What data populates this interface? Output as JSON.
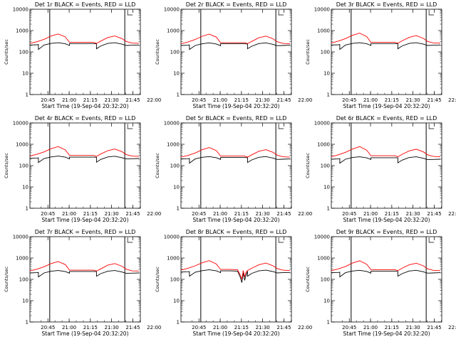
{
  "title_template": "Det {d}  BLACK = Events, RED = LLD",
  "xlabel": "Start Time (19-Sep-04 20:32:20)",
  "ylabel": "Counts/sec",
  "y_ticks": [
    {
      "v": 1,
      "label": "1"
    },
    {
      "v": 10,
      "label": "10"
    },
    {
      "v": 100,
      "label": "100"
    },
    {
      "v": 1000,
      "label": "1000"
    },
    {
      "v": 10000,
      "label": "10000"
    }
  ],
  "x_tick_labels": [
    "20:45",
    "21:00",
    "21:15",
    "21:30",
    "21:45",
    "22:00"
  ],
  "colors": {
    "events": "#000000",
    "lld": "#ff0000",
    "axes": "#000000"
  },
  "chart_data": [
    {
      "type": "line",
      "detector": "1r",
      "title": "Det 1r  BLACK = Events, RED = LLD",
      "xlabel": "Start Time (19-Sep-04 20:32:20)",
      "ylabel": "Counts/sec",
      "y_scale": "log",
      "ylim": [
        1,
        10000
      ],
      "x_range_min": [
        0,
        78
      ],
      "x_ticks_min": [
        12.7,
        27.7,
        42.7,
        57.7,
        72.7,
        87.7
      ],
      "vlines_min": [
        14,
        67
      ],
      "series": [
        {
          "name": "Events",
          "color": "#000000",
          "x": [
            0,
            5,
            6,
            6,
            10,
            15,
            20,
            25,
            28,
            28,
            35,
            45,
            47,
            47,
            50,
            55,
            60,
            65,
            68,
            72,
            77
          ],
          "y": [
            210,
            215,
            220,
            130,
            210,
            250,
            270,
            240,
            200,
            245,
            245,
            245,
            240,
            140,
            190,
            250,
            270,
            230,
            200,
            205,
            210
          ]
        },
        {
          "name": "LLD",
          "color": "#ff0000",
          "x": [
            0,
            5,
            10,
            15,
            20,
            25,
            28,
            35,
            45,
            47,
            50,
            55,
            60,
            65,
            68,
            72,
            77
          ],
          "y": [
            250,
            300,
            390,
            560,
            690,
            500,
            280,
            280,
            280,
            250,
            320,
            470,
            560,
            420,
            310,
            260,
            250
          ]
        }
      ]
    },
    {
      "type": "line",
      "detector": "2r",
      "title": "Det 2r  BLACK = Events, RED = LLD",
      "xlabel": "Start Time (19-Sep-04 20:32:20)",
      "ylabel": "Counts/sec",
      "y_scale": "log",
      "ylim": [
        1,
        10000
      ],
      "x_range_min": [
        0,
        78
      ],
      "x_ticks_min": [
        12.7,
        27.7,
        42.7,
        57.7,
        72.7,
        87.7
      ],
      "vlines_min": [
        14,
        67
      ],
      "series": [
        {
          "name": "Events",
          "color": "#000000",
          "x": [
            0,
            5,
            6,
            6,
            10,
            15,
            20,
            25,
            28,
            28,
            35,
            45,
            47,
            47,
            50,
            55,
            60,
            65,
            68,
            72,
            77
          ],
          "y": [
            200,
            205,
            210,
            130,
            200,
            240,
            265,
            235,
            195,
            240,
            240,
            240,
            235,
            140,
            185,
            245,
            265,
            225,
            195,
            200,
            205
          ]
        },
        {
          "name": "LLD",
          "color": "#ff0000",
          "x": [
            0,
            5,
            10,
            15,
            20,
            25,
            28,
            35,
            45,
            47,
            50,
            55,
            60,
            65,
            68,
            72,
            77
          ],
          "y": [
            240,
            290,
            380,
            540,
            680,
            490,
            270,
            270,
            270,
            245,
            310,
            460,
            550,
            410,
            300,
            250,
            240
          ]
        }
      ]
    },
    {
      "type": "line",
      "detector": "3r",
      "title": "Det 3r  BLACK = Events, RED = LLD",
      "xlabel": "Start Time (19-Sep-04 20:32:20)",
      "ylabel": "Counts/sec",
      "y_scale": "log",
      "ylim": [
        1,
        10000
      ],
      "x_range_min": [
        0,
        78
      ],
      "x_ticks_min": [
        12.7,
        27.7,
        42.7,
        57.7,
        72.7,
        87.7
      ],
      "vlines_min": [
        14,
        67
      ],
      "series": [
        {
          "name": "Events",
          "color": "#000000",
          "x": [
            0,
            5,
            6,
            6,
            10,
            15,
            20,
            25,
            28,
            28,
            35,
            45,
            47,
            47,
            50,
            55,
            60,
            65,
            68,
            72,
            77
          ],
          "y": [
            210,
            215,
            220,
            130,
            210,
            250,
            270,
            240,
            200,
            245,
            245,
            245,
            240,
            140,
            190,
            250,
            270,
            230,
            200,
            205,
            210
          ]
        },
        {
          "name": "LLD",
          "color": "#ff0000",
          "x": [
            0,
            5,
            10,
            15,
            20,
            25,
            28,
            35,
            45,
            47,
            50,
            55,
            60,
            65,
            68,
            72,
            77
          ],
          "y": [
            260,
            320,
            420,
            600,
            760,
            520,
            280,
            280,
            280,
            255,
            330,
            480,
            580,
            430,
            310,
            265,
            255
          ]
        }
      ]
    },
    {
      "type": "line",
      "detector": "4r",
      "title": "Det 4r  BLACK = Events, RED = LLD",
      "xlabel": "Start Time (19-Sep-04 20:32:20)",
      "ylabel": "Counts/sec",
      "y_scale": "log",
      "ylim": [
        1,
        10000
      ],
      "x_range_min": [
        0,
        78
      ],
      "x_ticks_min": [
        12.7,
        27.7,
        42.7,
        57.7,
        72.7,
        87.7
      ],
      "vlines_min": [
        14,
        67
      ],
      "series": [
        {
          "name": "Events",
          "color": "#000000",
          "x": [
            0,
            5,
            6,
            6,
            10,
            15,
            20,
            25,
            28,
            28,
            35,
            45,
            47,
            47,
            50,
            55,
            60,
            65,
            68,
            72,
            77
          ],
          "y": [
            220,
            225,
            230,
            140,
            215,
            255,
            280,
            250,
            205,
            250,
            250,
            250,
            245,
            145,
            195,
            255,
            275,
            235,
            205,
            210,
            215
          ]
        },
        {
          "name": "LLD",
          "color": "#ff0000",
          "x": [
            0,
            5,
            10,
            15,
            20,
            25,
            28,
            35,
            45,
            47,
            50,
            55,
            60,
            65,
            68,
            72,
            77
          ],
          "y": [
            280,
            340,
            440,
            620,
            780,
            540,
            300,
            300,
            300,
            270,
            350,
            500,
            600,
            450,
            330,
            280,
            270
          ]
        }
      ]
    },
    {
      "type": "line",
      "detector": "5r",
      "title": "Det 5r  BLACK = Events, RED = LLD",
      "xlabel": "Start Time (19-Sep-04 20:32:20)",
      "ylabel": "Counts/sec",
      "y_scale": "log",
      "ylim": [
        1,
        10000
      ],
      "x_range_min": [
        0,
        78
      ],
      "x_ticks_min": [
        12.7,
        27.7,
        42.7,
        57.7,
        72.7,
        87.7
      ],
      "vlines_min": [
        14,
        67
      ],
      "series": [
        {
          "name": "Events",
          "color": "#000000",
          "x": [
            0,
            5,
            6,
            6,
            10,
            15,
            20,
            25,
            28,
            28,
            35,
            45,
            47,
            47,
            50,
            55,
            60,
            65,
            68,
            72,
            77
          ],
          "y": [
            205,
            210,
            215,
            130,
            205,
            245,
            265,
            235,
            195,
            240,
            240,
            240,
            235,
            140,
            185,
            245,
            265,
            225,
            195,
            200,
            205
          ]
        },
        {
          "name": "LLD",
          "color": "#ff0000",
          "x": [
            0,
            5,
            10,
            15,
            20,
            25,
            28,
            35,
            45,
            47,
            50,
            55,
            60,
            65,
            68,
            72,
            77
          ],
          "y": [
            250,
            300,
            390,
            560,
            700,
            500,
            280,
            280,
            280,
            250,
            320,
            470,
            560,
            420,
            310,
            260,
            250
          ]
        }
      ]
    },
    {
      "type": "line",
      "detector": "6r",
      "title": "Det 6r  BLACK = Events, RED = LLD",
      "xlabel": "Start Time (19-Sep-04 20:32:20)",
      "ylabel": "Counts/sec",
      "y_scale": "log",
      "ylim": [
        1,
        10000
      ],
      "x_range_min": [
        0,
        78
      ],
      "x_ticks_min": [
        12.7,
        27.7,
        42.7,
        57.7,
        72.7,
        87.7
      ],
      "vlines_min": [
        14,
        67
      ],
      "series": [
        {
          "name": "Events",
          "color": "#000000",
          "x": [
            0,
            5,
            6,
            6,
            10,
            15,
            20,
            25,
            28,
            28,
            35,
            45,
            47,
            47,
            50,
            55,
            60,
            65,
            68,
            72,
            77
          ],
          "y": [
            200,
            205,
            210,
            130,
            200,
            240,
            260,
            230,
            195,
            235,
            235,
            235,
            230,
            135,
            180,
            240,
            260,
            220,
            190,
            195,
            200
          ]
        },
        {
          "name": "LLD",
          "color": "#ff0000",
          "x": [
            0,
            5,
            10,
            15,
            20,
            25,
            28,
            35,
            45,
            47,
            50,
            55,
            60,
            65,
            68,
            72,
            77
          ],
          "y": [
            260,
            320,
            420,
            600,
            780,
            530,
            290,
            290,
            290,
            260,
            340,
            490,
            590,
            440,
            320,
            270,
            260
          ]
        }
      ]
    },
    {
      "type": "line",
      "detector": "7r",
      "title": "Det 7r  BLACK = Events, RED = LLD",
      "xlabel": "Start Time (19-Sep-04 20:32:20)",
      "ylabel": "Counts/sec",
      "y_scale": "log",
      "ylim": [
        1,
        10000
      ],
      "x_range_min": [
        0,
        78
      ],
      "x_ticks_min": [
        12.7,
        27.7,
        42.7,
        57.7,
        72.7,
        87.7
      ],
      "vlines_min": [
        14,
        67
      ],
      "series": [
        {
          "name": "Events",
          "color": "#000000",
          "x": [
            0,
            5,
            6,
            6,
            10,
            15,
            20,
            25,
            28,
            28,
            35,
            45,
            47,
            47,
            50,
            55,
            60,
            65,
            68,
            72,
            77
          ],
          "y": [
            200,
            205,
            210,
            130,
            200,
            240,
            260,
            230,
            195,
            235,
            235,
            235,
            230,
            140,
            185,
            240,
            260,
            220,
            190,
            195,
            200
          ]
        },
        {
          "name": "LLD",
          "color": "#ff0000",
          "x": [
            0,
            5,
            10,
            15,
            20,
            25,
            28,
            35,
            45,
            47,
            50,
            55,
            60,
            65,
            68,
            72,
            77
          ],
          "y": [
            250,
            300,
            390,
            550,
            680,
            490,
            270,
            270,
            270,
            245,
            310,
            460,
            550,
            410,
            300,
            250,
            245
          ]
        }
      ]
    },
    {
      "type": "line",
      "detector": "8r",
      "title": "Det 8r  BLACK = Events, RED = LLD",
      "xlabel": "Start Time (19-Sep-04 20:32:20)",
      "ylabel": "Counts/sec",
      "y_scale": "log",
      "ylim": [
        1,
        10000
      ],
      "x_range_min": [
        0,
        78
      ],
      "x_ticks_min": [
        12.7,
        27.7,
        42.7,
        57.7,
        72.7,
        87.7
      ],
      "vlines_min": [
        14,
        67
      ],
      "series": [
        {
          "name": "Events",
          "color": "#000000",
          "x": [
            0,
            5,
            6,
            6,
            10,
            15,
            20,
            25,
            28,
            28,
            35,
            40,
            42,
            43,
            44,
            45,
            46,
            47,
            47,
            50,
            55,
            60,
            65,
            68,
            72,
            77
          ],
          "y": [
            220,
            225,
            230,
            140,
            215,
            255,
            280,
            250,
            205,
            250,
            250,
            240,
            120,
            70,
            200,
            90,
            160,
            240,
            140,
            190,
            250,
            270,
            230,
            200,
            205,
            210
          ]
        },
        {
          "name": "LLD",
          "color": "#ff0000",
          "x": [
            0,
            5,
            10,
            15,
            20,
            25,
            28,
            35,
            40,
            42,
            43,
            44,
            45,
            46,
            47,
            50,
            55,
            60,
            65,
            68,
            72,
            77
          ],
          "y": [
            270,
            330,
            430,
            600,
            750,
            520,
            290,
            290,
            280,
            150,
            100,
            260,
            130,
            220,
            260,
            330,
            480,
            580,
            430,
            320,
            270,
            260
          ]
        }
      ]
    },
    {
      "type": "line",
      "detector": "9r",
      "title": "Det 9r  BLACK = Events, RED = LLD",
      "xlabel": "Start Time (19-Sep-04 20:32:20)",
      "ylabel": "Counts/sec",
      "y_scale": "log",
      "ylim": [
        1,
        10000
      ],
      "x_range_min": [
        0,
        78
      ],
      "x_ticks_min": [
        12.7,
        27.7,
        42.7,
        57.7,
        72.7,
        87.7
      ],
      "vlines_min": [
        14,
        67
      ],
      "series": [
        {
          "name": "Events",
          "color": "#000000",
          "x": [
            0,
            5,
            6,
            6,
            10,
            15,
            20,
            25,
            28,
            28,
            35,
            45,
            47,
            47,
            50,
            55,
            60,
            65,
            68,
            72,
            77
          ],
          "y": [
            205,
            210,
            215,
            130,
            205,
            245,
            265,
            235,
            195,
            240,
            240,
            240,
            235,
            140,
            185,
            245,
            265,
            225,
            195,
            200,
            205
          ]
        },
        {
          "name": "LLD",
          "color": "#ff0000",
          "x": [
            0,
            5,
            10,
            15,
            20,
            25,
            28,
            35,
            45,
            47,
            50,
            55,
            60,
            65,
            68,
            72,
            77
          ],
          "y": [
            255,
            310,
            400,
            580,
            740,
            510,
            285,
            285,
            285,
            255,
            330,
            480,
            570,
            430,
            310,
            265,
            255
          ]
        }
      ]
    }
  ]
}
